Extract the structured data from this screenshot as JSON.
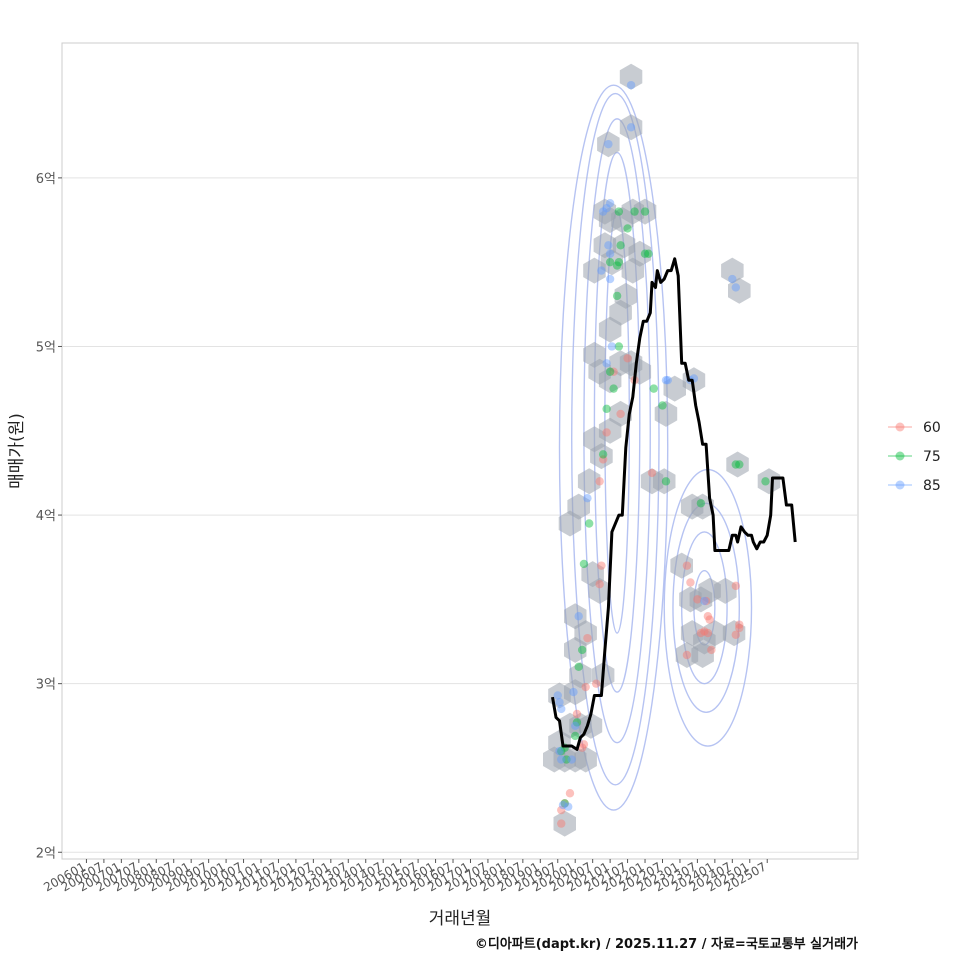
{
  "chart_data": {
    "type": "scatter",
    "xlabel": "거래년월",
    "ylabel": "매매가(원)",
    "caption": "©디아파트(dapt.kr) / 2025.11.27 / 자료=국토교통부 실거래가",
    "x_ticks": [
      "200601",
      "200607",
      "200701",
      "200707",
      "200801",
      "200807",
      "200901",
      "200907",
      "201001",
      "201007",
      "201101",
      "201107",
      "201201",
      "201207",
      "201301",
      "201307",
      "201401",
      "201407",
      "201501",
      "201507",
      "201601",
      "201607",
      "201701",
      "201707",
      "201801",
      "201807",
      "201901",
      "201907",
      "202001",
      "202007",
      "202101",
      "202107",
      "202201",
      "202207",
      "202301",
      "202307",
      "202401",
      "202407",
      "202501",
      "202507"
    ],
    "y_ticks": [
      {
        "value": 2.0,
        "label": "2억"
      },
      {
        "value": 3.0,
        "label": "3억"
      },
      {
        "value": 4.0,
        "label": "4억"
      },
      {
        "value": 5.0,
        "label": "5억"
      },
      {
        "value": 6.0,
        "label": "6억"
      }
    ],
    "x_range_years": [
      2005.3,
      2028.1
    ],
    "y_range": [
      1.96,
      6.8
    ],
    "grid": true,
    "legend_position": "right",
    "legend": [
      {
        "name": "60",
        "color": "#F8766D"
      },
      {
        "name": "75",
        "color": "#00BA38"
      },
      {
        "name": "85",
        "color": "#619CFF"
      }
    ],
    "series": [
      {
        "name": "60",
        "color": "#F8766D",
        "points": [
          [
            2019.6,
            2.17
          ],
          [
            2019.6,
            2.25
          ],
          [
            2019.7,
            2.29
          ],
          [
            2019.85,
            2.35
          ],
          [
            2020.2,
            2.62
          ],
          [
            2020.25,
            2.64
          ],
          [
            2020.3,
            2.98
          ],
          [
            2020.35,
            3.27
          ],
          [
            2020.6,
            3.0
          ],
          [
            2020.7,
            3.59
          ],
          [
            2020.75,
            3.7
          ],
          [
            2020.7,
            4.2
          ],
          [
            2020.8,
            4.33
          ],
          [
            2020.9,
            4.49
          ],
          [
            2021.1,
            4.85
          ],
          [
            2021.3,
            4.6
          ],
          [
            2021.5,
            4.93
          ],
          [
            2021.7,
            4.8
          ],
          [
            2022.2,
            4.25
          ],
          [
            2023.2,
            3.7
          ],
          [
            2023.3,
            3.6
          ],
          [
            2023.5,
            3.5
          ],
          [
            2023.6,
            3.3
          ],
          [
            2023.7,
            3.31
          ],
          [
            2023.75,
            3.49
          ],
          [
            2023.8,
            3.4
          ],
          [
            2023.85,
            3.38
          ],
          [
            2023.8,
            3.3
          ],
          [
            2023.9,
            3.2
          ],
          [
            2023.2,
            3.17
          ],
          [
            2024.6,
            3.29
          ],
          [
            2024.6,
            3.58
          ],
          [
            2024.7,
            3.35
          ],
          [
            2024.7,
            3.33
          ],
          [
            2020.05,
            2.82
          ]
        ]
      },
      {
        "name": "75",
        "color": "#00BA38",
        "points": [
          [
            2019.7,
            2.29
          ],
          [
            2019.6,
            2.6
          ],
          [
            2019.7,
            2.62
          ],
          [
            2020.0,
            2.69
          ],
          [
            2020.05,
            2.77
          ],
          [
            2020.1,
            3.1
          ],
          [
            2020.2,
            3.2
          ],
          [
            2020.25,
            3.71
          ],
          [
            2020.4,
            3.95
          ],
          [
            2020.8,
            4.36
          ],
          [
            2020.9,
            4.63
          ],
          [
            2021.0,
            4.85
          ],
          [
            2021.1,
            4.75
          ],
          [
            2021.25,
            5.0
          ],
          [
            2021.2,
            5.3
          ],
          [
            2021.0,
            5.5
          ],
          [
            2021.2,
            5.48
          ],
          [
            2021.25,
            5.5
          ],
          [
            2021.3,
            5.6
          ],
          [
            2021.25,
            5.8
          ],
          [
            2021.5,
            5.7
          ],
          [
            2021.7,
            5.8
          ],
          [
            2022.0,
            5.8
          ],
          [
            2022.0,
            5.55
          ],
          [
            2022.1,
            5.55
          ],
          [
            2022.25,
            4.75
          ],
          [
            2022.5,
            4.65
          ],
          [
            2022.6,
            4.2
          ],
          [
            2023.6,
            4.07
          ],
          [
            2024.6,
            4.3
          ],
          [
            2024.7,
            4.3
          ],
          [
            2025.45,
            4.2
          ],
          [
            2019.75,
            2.55
          ]
        ]
      },
      {
        "name": "85",
        "color": "#619CFF",
        "points": [
          [
            2019.65,
            2.28
          ],
          [
            2019.8,
            2.27
          ],
          [
            2019.55,
            2.6
          ],
          [
            2019.6,
            2.55
          ],
          [
            2019.5,
            2.93
          ],
          [
            2019.55,
            2.89
          ],
          [
            2019.6,
            2.85
          ],
          [
            2019.9,
            2.55
          ],
          [
            2019.95,
            2.95
          ],
          [
            2020.1,
            3.4
          ],
          [
            2020.35,
            4.1
          ],
          [
            2020.75,
            5.45
          ],
          [
            2020.8,
            5.8
          ],
          [
            2020.9,
            5.82
          ],
          [
            2021.0,
            5.85
          ],
          [
            2020.95,
            6.2
          ],
          [
            2020.9,
            4.9
          ],
          [
            2021.05,
            5.0
          ],
          [
            2021.0,
            5.4
          ],
          [
            2021.6,
            6.3
          ],
          [
            2021.6,
            6.55
          ],
          [
            2022.6,
            4.8
          ],
          [
            2022.65,
            4.8
          ],
          [
            2023.3,
            4.8
          ],
          [
            2023.4,
            4.81
          ],
          [
            2024.5,
            5.4
          ],
          [
            2024.6,
            5.35
          ],
          [
            2023.7,
            3.49
          ],
          [
            2020.0,
            2.75
          ],
          [
            2021.0,
            5.55
          ],
          [
            2020.95,
            5.6
          ]
        ]
      }
    ],
    "hexbins": [
      [
        2019.7,
        2.17
      ],
      [
        2019.4,
        2.55
      ],
      [
        2019.7,
        2.55
      ],
      [
        2020.0,
        2.55
      ],
      [
        2020.3,
        2.55
      ],
      [
        2019.55,
        2.65
      ],
      [
        2019.85,
        2.75
      ],
      [
        2020.15,
        2.75
      ],
      [
        2020.45,
        2.75
      ],
      [
        2020.0,
        2.95
      ],
      [
        2020.15,
        3.05
      ],
      [
        2020.8,
        3.05
      ],
      [
        2020.0,
        3.2
      ],
      [
        2020.3,
        3.3
      ],
      [
        2020.0,
        3.4
      ],
      [
        2020.7,
        3.55
      ],
      [
        2020.5,
        3.65
      ],
      [
        2019.85,
        3.95
      ],
      [
        2020.1,
        4.05
      ],
      [
        2020.4,
        4.2
      ],
      [
        2020.75,
        4.35
      ],
      [
        2020.55,
        4.45
      ],
      [
        2021.0,
        4.5
      ],
      [
        2021.3,
        4.6
      ],
      [
        2020.7,
        4.85
      ],
      [
        2020.55,
        4.95
      ],
      [
        2021.0,
        4.8
      ],
      [
        2021.3,
        4.9
      ],
      [
        2021.6,
        4.9
      ],
      [
        2021.85,
        4.85
      ],
      [
        2021.0,
        5.1
      ],
      [
        2021.3,
        5.2
      ],
      [
        2021.45,
        5.3
      ],
      [
        2020.55,
        5.45
      ],
      [
        2021.05,
        5.5
      ],
      [
        2021.4,
        5.6
      ],
      [
        2021.65,
        5.45
      ],
      [
        2021.85,
        5.55
      ],
      [
        2020.85,
        5.6
      ],
      [
        2021.0,
        5.75
      ],
      [
        2020.85,
        5.8
      ],
      [
        2021.35,
        5.75
      ],
      [
        2021.65,
        5.8
      ],
      [
        2022.0,
        5.8
      ],
      [
        2021.6,
        6.3
      ],
      [
        2021.6,
        6.6
      ],
      [
        2020.95,
        6.2
      ],
      [
        2022.6,
        4.6
      ],
      [
        2022.85,
        4.75
      ],
      [
        2022.2,
        4.2
      ],
      [
        2022.55,
        4.2
      ],
      [
        2023.05,
        3.7
      ],
      [
        2023.3,
        3.5
      ],
      [
        2023.6,
        3.5
      ],
      [
        2023.85,
        3.55
      ],
      [
        2024.3,
        3.55
      ],
      [
        2023.35,
        3.3
      ],
      [
        2023.7,
        3.25
      ],
      [
        2024.0,
        3.3
      ],
      [
        2024.55,
        3.3
      ],
      [
        2023.2,
        3.17
      ],
      [
        2023.65,
        3.17
      ],
      [
        2023.35,
        4.05
      ],
      [
        2023.65,
        4.05
      ],
      [
        2024.5,
        5.45
      ],
      [
        2024.7,
        5.33
      ],
      [
        2024.65,
        4.3
      ],
      [
        2025.55,
        4.2
      ],
      [
        2023.4,
        4.8
      ],
      [
        2019.55,
        2.93
      ]
    ],
    "density_contours": [
      {
        "cx": 2021.2,
        "cy": 4.55,
        "rx": 0.35,
        "ry": 1.25
      },
      {
        "cx": 2021.2,
        "cy": 4.55,
        "rx": 0.65,
        "ry": 1.6
      },
      {
        "cx": 2021.2,
        "cy": 4.5,
        "rx": 0.95,
        "ry": 1.85
      },
      {
        "cx": 2021.15,
        "cy": 4.45,
        "rx": 1.25,
        "ry": 2.05
      },
      {
        "cx": 2021.1,
        "cy": 4.4,
        "rx": 1.55,
        "ry": 2.15
      },
      {
        "cx": 2023.7,
        "cy": 3.45,
        "rx": 0.3,
        "ry": 0.22
      },
      {
        "cx": 2023.7,
        "cy": 3.45,
        "rx": 0.65,
        "ry": 0.45
      },
      {
        "cx": 2023.75,
        "cy": 3.45,
        "rx": 0.95,
        "ry": 0.62
      },
      {
        "cx": 2023.8,
        "cy": 3.45,
        "rx": 1.25,
        "ry": 0.82
      }
    ],
    "moving_average": [
      [
        2019.35,
        2.92
      ],
      [
        2019.45,
        2.8
      ],
      [
        2019.55,
        2.78
      ],
      [
        2019.65,
        2.63
      ],
      [
        2019.9,
        2.63
      ],
      [
        2020.05,
        2.61
      ],
      [
        2020.15,
        2.68
      ],
      [
        2020.25,
        2.7
      ],
      [
        2020.35,
        2.75
      ],
      [
        2020.45,
        2.82
      ],
      [
        2020.55,
        2.93
      ],
      [
        2020.75,
        2.93
      ],
      [
        2020.85,
        3.2
      ],
      [
        2020.95,
        3.45
      ],
      [
        2021.05,
        3.9
      ],
      [
        2021.25,
        4.0
      ],
      [
        2021.35,
        4.0
      ],
      [
        2021.45,
        4.4
      ],
      [
        2021.55,
        4.6
      ],
      [
        2021.65,
        4.7
      ],
      [
        2021.75,
        4.9
      ],
      [
        2021.85,
        5.05
      ],
      [
        2021.95,
        5.15
      ],
      [
        2022.05,
        5.15
      ],
      [
        2022.15,
        5.2
      ],
      [
        2022.2,
        5.38
      ],
      [
        2022.3,
        5.35
      ],
      [
        2022.35,
        5.45
      ],
      [
        2022.45,
        5.38
      ],
      [
        2022.55,
        5.4
      ],
      [
        2022.65,
        5.45
      ],
      [
        2022.75,
        5.45
      ],
      [
        2022.85,
        5.52
      ],
      [
        2022.95,
        5.42
      ],
      [
        2023.05,
        4.9
      ],
      [
        2023.15,
        4.9
      ],
      [
        2023.25,
        4.8
      ],
      [
        2023.35,
        4.8
      ],
      [
        2023.45,
        4.65
      ],
      [
        2023.55,
        4.55
      ],
      [
        2023.65,
        4.42
      ],
      [
        2023.75,
        4.42
      ],
      [
        2023.85,
        4.1
      ],
      [
        2023.95,
        4.0
      ],
      [
        2024.0,
        3.79
      ],
      [
        2024.1,
        3.79
      ],
      [
        2024.4,
        3.79
      ],
      [
        2024.5,
        3.88
      ],
      [
        2024.6,
        3.88
      ],
      [
        2024.65,
        3.84
      ],
      [
        2024.75,
        3.93
      ],
      [
        2024.85,
        3.9
      ],
      [
        2024.95,
        3.88
      ],
      [
        2025.05,
        3.88
      ],
      [
        2025.1,
        3.84
      ],
      [
        2025.2,
        3.8
      ],
      [
        2025.3,
        3.84
      ],
      [
        2025.4,
        3.84
      ],
      [
        2025.5,
        3.88
      ],
      [
        2025.6,
        4.0
      ],
      [
        2025.65,
        4.22
      ],
      [
        2025.95,
        4.22
      ],
      [
        2026.05,
        4.06
      ],
      [
        2026.2,
        4.06
      ],
      [
        2026.3,
        3.84
      ]
    ]
  }
}
